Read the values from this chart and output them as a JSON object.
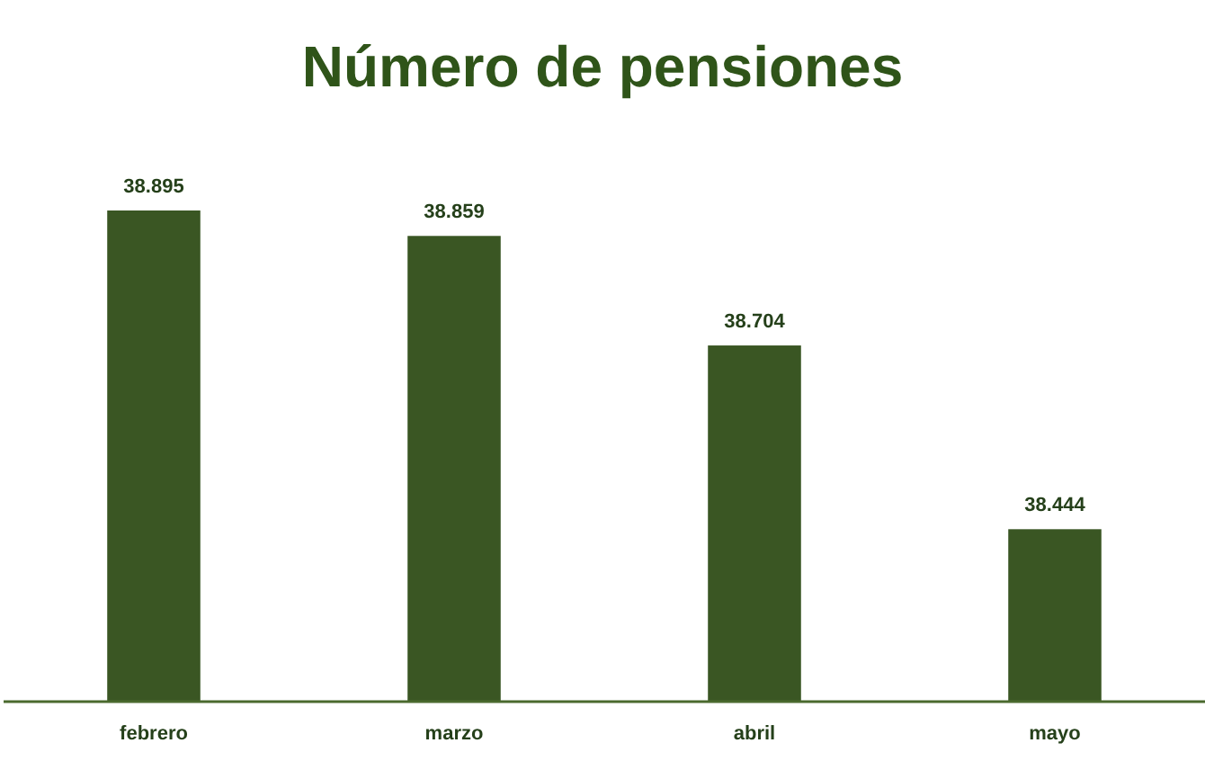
{
  "chart_data": {
    "type": "bar",
    "title": "Número de pensiones",
    "categories": [
      "febrero",
      "marzo",
      "abril",
      "mayo"
    ],
    "values": [
      38895,
      38859,
      38704,
      38444
    ],
    "value_labels": [
      "38.895",
      "38.859",
      "38.704",
      "38.444"
    ],
    "color": "#3a5623",
    "ylim": [
      38200,
      38895
    ]
  }
}
